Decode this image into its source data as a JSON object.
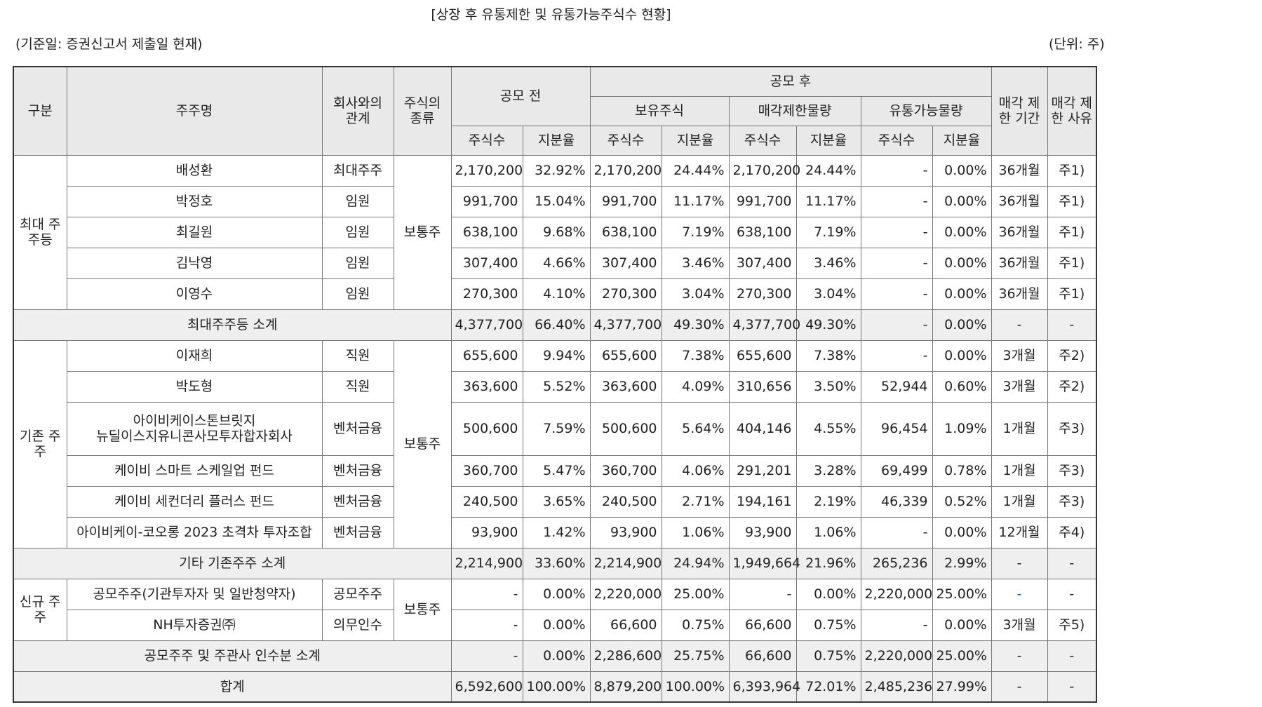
{
  "title": "[상장 후 유통제한 및 유통가능주식수 현황]",
  "basis": "(기준일: 증권신고서 제출일 현재)",
  "unit": "(단위: 주)",
  "headers": {
    "category": "구분",
    "holder": "주주명",
    "relation": "회사와의 관계",
    "stock_type": "주식의 종류",
    "before": "공모 전",
    "after": "공모 후",
    "held": "보유주식",
    "restricted": "매각제한물량",
    "tradable": "유통가능물량",
    "shares": "주식수",
    "ratio": "지분율",
    "period": "매각 제한 기간",
    "reason": "매각 제한 사유"
  },
  "groups": {
    "major": "최대 주주등",
    "existing": "기존 주주",
    "new": "신규 주주"
  },
  "stock_common": "보통주",
  "rows": [
    {
      "name": "배성환",
      "rel": "최대주주",
      "b_sh": "2,170,200",
      "b_r": "32.92%",
      "h_sh": "2,170,200",
      "h_r": "24.44%",
      "r_sh": "2,170,200",
      "r_r": "24.44%",
      "t_sh": "-",
      "t_r": "0.00%",
      "period": "36개월",
      "reason": "주1)"
    },
    {
      "name": "박정호",
      "rel": "임원",
      "b_sh": "991,700",
      "b_r": "15.04%",
      "h_sh": "991,700",
      "h_r": "11.17%",
      "r_sh": "991,700",
      "r_r": "11.17%",
      "t_sh": "-",
      "t_r": "0.00%",
      "period": "36개월",
      "reason": "주1)"
    },
    {
      "name": "최길원",
      "rel": "임원",
      "b_sh": "638,100",
      "b_r": "9.68%",
      "h_sh": "638,100",
      "h_r": "7.19%",
      "r_sh": "638,100",
      "r_r": "7.19%",
      "t_sh": "-",
      "t_r": "0.00%",
      "period": "36개월",
      "reason": "주1)"
    },
    {
      "name": "김낙영",
      "rel": "임원",
      "b_sh": "307,400",
      "b_r": "4.66%",
      "h_sh": "307,400",
      "h_r": "3.46%",
      "r_sh": "307,400",
      "r_r": "3.46%",
      "t_sh": "-",
      "t_r": "0.00%",
      "period": "36개월",
      "reason": "주1)"
    },
    {
      "name": "이영수",
      "rel": "임원",
      "b_sh": "270,300",
      "b_r": "4.10%",
      "h_sh": "270,300",
      "h_r": "3.04%",
      "r_sh": "270,300",
      "r_r": "3.04%",
      "t_sh": "-",
      "t_r": "0.00%",
      "period": "36개월",
      "reason": "주1)"
    },
    {
      "name": "최대주주등 소계",
      "b_sh": "4,377,700",
      "b_r": "66.40%",
      "h_sh": "4,377,700",
      "h_r": "49.30%",
      "r_sh": "4,377,700",
      "r_r": "49.30%",
      "t_sh": "-",
      "t_r": "0.00%",
      "period": "-",
      "reason": "-"
    },
    {
      "name": "이재희",
      "rel": "직원",
      "b_sh": "655,600",
      "b_r": "9.94%",
      "h_sh": "655,600",
      "h_r": "7.38%",
      "r_sh": "655,600",
      "r_r": "7.38%",
      "t_sh": "-",
      "t_r": "0.00%",
      "period": "3개월",
      "reason": "주2)"
    },
    {
      "name": "박도형",
      "rel": "직원",
      "b_sh": "363,600",
      "b_r": "5.52%",
      "h_sh": "363,600",
      "h_r": "4.09%",
      "r_sh": "310,656",
      "r_r": "3.50%",
      "t_sh": "52,944",
      "t_r": "0.60%",
      "period": "3개월",
      "reason": "주2)"
    },
    {
      "name": "아이비케이스톤브릿지",
      "name2": "뉴딜이스지유니콘사모투자합자회사",
      "rel": "벤처금융",
      "b_sh": "500,600",
      "b_r": "7.59%",
      "h_sh": "500,600",
      "h_r": "5.64%",
      "r_sh": "404,146",
      "r_r": "4.55%",
      "t_sh": "96,454",
      "t_r": "1.09%",
      "period": "1개월",
      "reason": "주3)"
    },
    {
      "name": "케이비 스마트 스케일업 펀드",
      "rel": "벤처금융",
      "b_sh": "360,700",
      "b_r": "5.47%",
      "h_sh": "360,700",
      "h_r": "4.06%",
      "r_sh": "291,201",
      "r_r": "3.28%",
      "t_sh": "69,499",
      "t_r": "0.78%",
      "period": "1개월",
      "reason": "주3)"
    },
    {
      "name": "케이비 세컨더리 플러스 펀드",
      "rel": "벤처금융",
      "b_sh": "240,500",
      "b_r": "3.65%",
      "h_sh": "240,500",
      "h_r": "2.71%",
      "r_sh": "194,161",
      "r_r": "2.19%",
      "t_sh": "46,339",
      "t_r": "0.52%",
      "period": "1개월",
      "reason": "주3)"
    },
    {
      "name": "아이비케이-코오롱 2023 초격차 투자조합",
      "rel": "벤처금융",
      "b_sh": "93,900",
      "b_r": "1.42%",
      "h_sh": "93,900",
      "h_r": "1.06%",
      "r_sh": "93,900",
      "r_r": "1.06%",
      "t_sh": "-",
      "t_r": "0.00%",
      "period": "12개월",
      "reason": "주4)"
    },
    {
      "name": "기타 기존주주 소계",
      "b_sh": "2,214,900",
      "b_r": "33.60%",
      "h_sh": "2,214,900",
      "h_r": "24.94%",
      "r_sh": "1,949,664",
      "r_r": "21.96%",
      "t_sh": "265,236",
      "t_r": "2.99%",
      "period": "-",
      "reason": "-"
    },
    {
      "name": "공모주주(기관투자자 및 일반청약자)",
      "rel": "공모주주",
      "b_sh": "-",
      "b_r": "0.00%",
      "h_sh": "2,220,000",
      "h_r": "25.00%",
      "r_sh": "-",
      "r_r": "0.00%",
      "t_sh": "2,220,000",
      "t_r": "25.00%",
      "period": "-",
      "reason": "-"
    },
    {
      "name": "NH투자증권㈜",
      "rel": "의무인수",
      "b_sh": "-",
      "b_r": "0.00%",
      "h_sh": "66,600",
      "h_r": "0.75%",
      "r_sh": "66,600",
      "r_r": "0.75%",
      "t_sh": "-",
      "t_r": "0.00%",
      "period": "3개월",
      "reason": "주5)"
    },
    {
      "name": "공모주주 및 주관사 인수분 소계",
      "b_sh": "-",
      "b_r": "0.00%",
      "h_sh": "2,286,600",
      "h_r": "25.75%",
      "r_sh": "66,600",
      "r_r": "0.75%",
      "t_sh": "2,220,000",
      "t_r": "25.00%",
      "period": "-",
      "reason": "-"
    },
    {
      "name": "합계",
      "b_sh": "6,592,600",
      "b_r": "100.00%",
      "h_sh": "8,879,200",
      "h_r": "100.00%",
      "r_sh": "6,393,964",
      "r_r": "72.01%",
      "t_sh": "2,485,236",
      "t_r": "27.99%",
      "period": "-",
      "reason": "-"
    }
  ]
}
